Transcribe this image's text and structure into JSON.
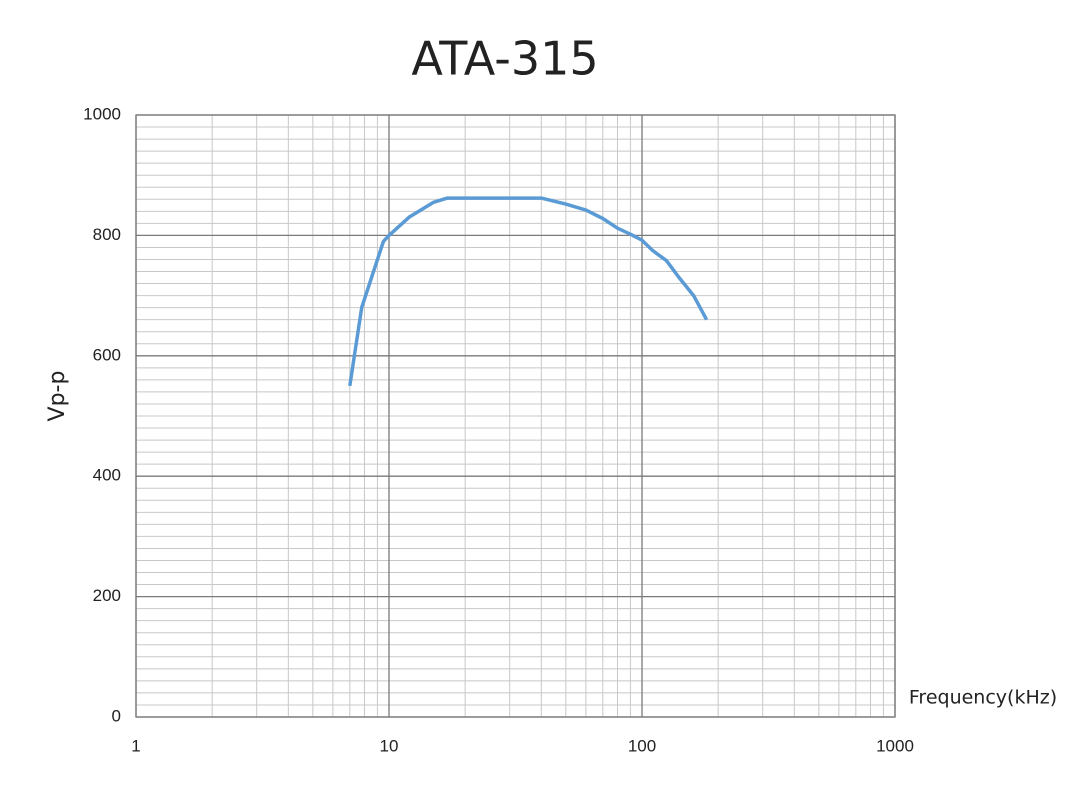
{
  "chart_data": {
    "type": "line",
    "title": "ATA-315",
    "x_label": "Frequency(kHz)",
    "y_label": "Vp-p",
    "x": [
      7,
      7.8,
      9.5,
      10,
      12,
      15,
      17,
      20,
      30,
      40,
      50,
      60,
      70,
      80,
      90,
      100,
      110,
      125,
      140,
      160,
      180
    ],
    "values": [
      550,
      680,
      790,
      800,
      830,
      855,
      862,
      862,
      862,
      862,
      852,
      842,
      828,
      812,
      802,
      792,
      775,
      758,
      730,
      700,
      660
    ],
    "color": "#5b9bd5",
    "xscale": "log",
    "xlim": [
      1,
      1000
    ],
    "xticks": [
      1,
      10,
      100,
      1000
    ],
    "x_minor_ticks": [
      2,
      3,
      4,
      5,
      6,
      7,
      8,
      9,
      20,
      30,
      40,
      50,
      60,
      70,
      80,
      90,
      200,
      300,
      400,
      500,
      600,
      700,
      800,
      900
    ],
    "ylim": [
      0,
      1000
    ],
    "yticks": [
      0,
      200,
      400,
      600,
      800,
      1000
    ],
    "y_minor_ticks": [
      20,
      40,
      60,
      80,
      100,
      120,
      140,
      160,
      180,
      220,
      240,
      260,
      280,
      300,
      320,
      340,
      360,
      380,
      420,
      440,
      460,
      480,
      500,
      520,
      540,
      560,
      580,
      620,
      640,
      660,
      680,
      700,
      720,
      740,
      760,
      780,
      820,
      840,
      860,
      880,
      900,
      920,
      940,
      960,
      980
    ],
    "grid": true
  }
}
